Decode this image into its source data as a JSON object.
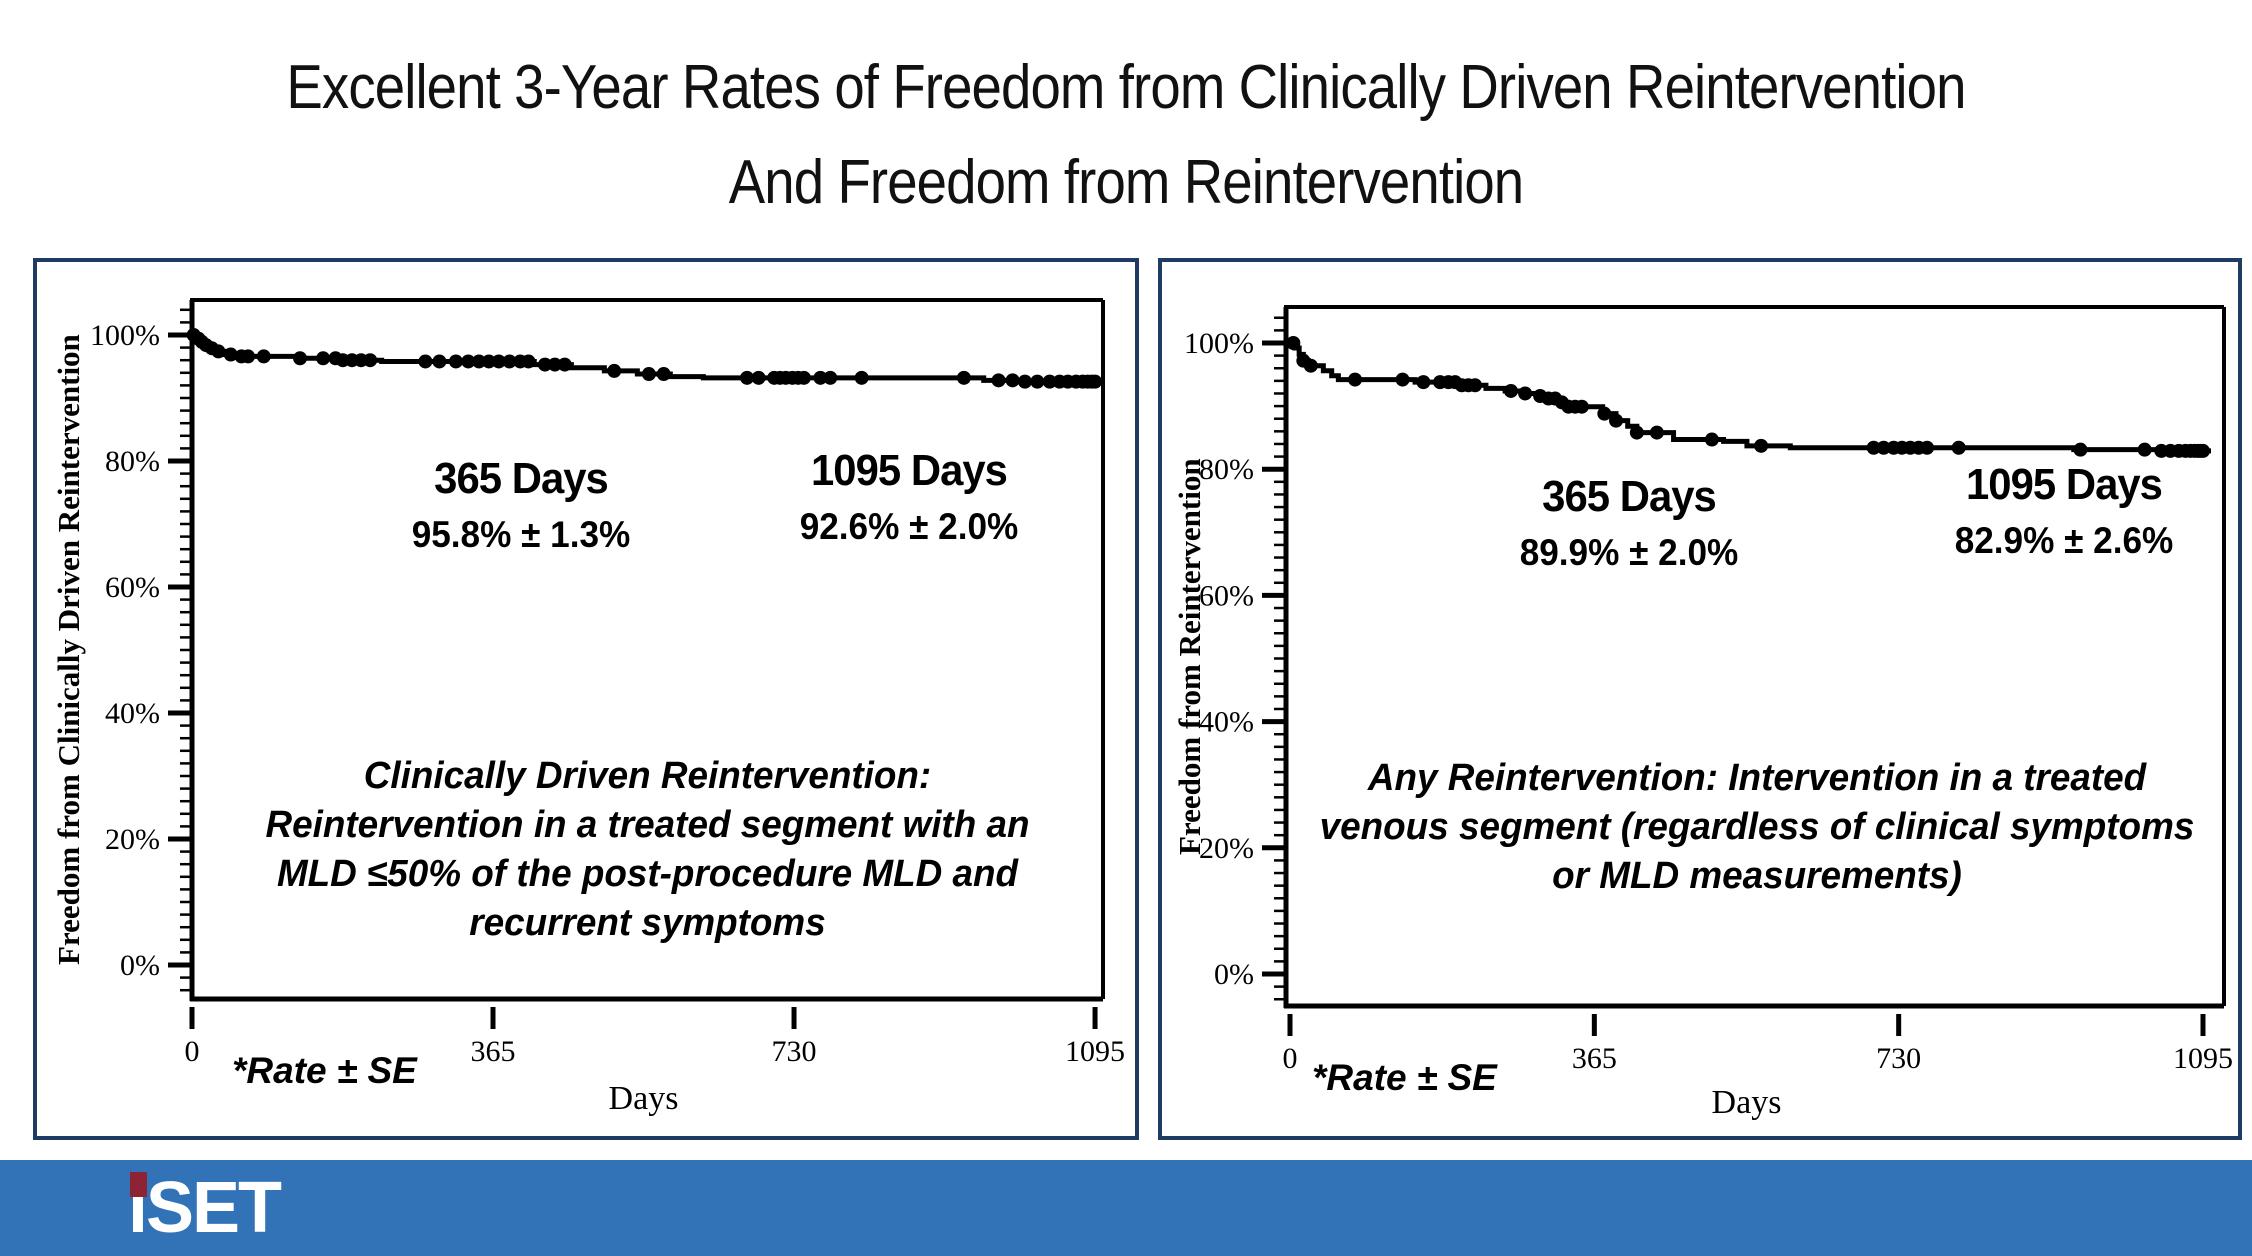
{
  "title": {
    "line1": "Excellent 3-Year Rates of Freedom from Clinically Driven Reintervention",
    "line2": "And Freedom from Reintervention"
  },
  "colors": {
    "panel_border": "#1f3a63",
    "curve": "#000000",
    "footer_bar": "#3273b8",
    "logo_accent_red": "#8e2433",
    "logo_text_white": "#ffffff"
  },
  "footer": {
    "logo_text": "iSET"
  },
  "chart_data": [
    {
      "type": "line",
      "subtype": "kaplan-meier-step",
      "ylabel": "Freedom from Clinically Driven Reintervention",
      "xlabel": "Days",
      "footnote": "*Rate ± SE",
      "xlim": [
        0,
        1095
      ],
      "ylim": [
        0,
        100
      ],
      "x_ticks": [
        0,
        365,
        730,
        1095
      ],
      "y_ticks": [
        {
          "value": 100,
          "label": "100%"
        },
        {
          "value": 80,
          "label": "80%"
        },
        {
          "value": 60,
          "label": "60%"
        },
        {
          "value": 40,
          "label": "40%"
        },
        {
          "value": 20,
          "label": "20%"
        },
        {
          "value": 0,
          "label": "0%"
        }
      ],
      "annotations": [
        {
          "heading": "365 Days",
          "value": "95.8% ± 1.3%"
        },
        {
          "heading": "1095 Days",
          "value": "92.6% ± 2.0%"
        }
      ],
      "note_lines": [
        "Clinically Driven Reintervention:",
        "Reintervention in a treated segment with an",
        "MLD ≤50% of the post-procedure MLD and",
        "recurrent symptoms"
      ],
      "steps": [
        [
          0,
          100
        ],
        [
          5,
          99.4
        ],
        [
          9,
          98.9
        ],
        [
          14,
          98.4
        ],
        [
          20,
          97.9
        ],
        [
          28,
          97.4
        ],
        [
          40,
          96.9
        ],
        [
          55,
          96.6
        ],
        [
          130,
          96.3
        ],
        [
          175,
          96.0
        ],
        [
          230,
          95.8
        ],
        [
          415,
          95.3
        ],
        [
          460,
          94.8
        ],
        [
          500,
          94.3
        ],
        [
          540,
          93.8
        ],
        [
          580,
          93.4
        ],
        [
          620,
          93.2
        ],
        [
          960,
          92.8
        ],
        [
          1010,
          92.6
        ]
      ],
      "censor_days": [
        2,
        8,
        12,
        17,
        24,
        32,
        47,
        60,
        68,
        87,
        131,
        159,
        174,
        183,
        194,
        205,
        216,
        283,
        300,
        320,
        335,
        348,
        360,
        372,
        385,
        398,
        408,
        428,
        440,
        452,
        512,
        554,
        572,
        673,
        687,
        706,
        713,
        720,
        728,
        735,
        742,
        762,
        774,
        812,
        936,
        978,
        995,
        1010,
        1025,
        1040,
        1052,
        1062,
        1072,
        1080,
        1086,
        1091,
        1095
      ]
    },
    {
      "type": "line",
      "subtype": "kaplan-meier-step",
      "ylabel": "Freedom from Reintervention",
      "xlabel": "Days",
      "footnote": "*Rate ± SE",
      "xlim": [
        0,
        1095
      ],
      "ylim": [
        0,
        100
      ],
      "x_ticks": [
        0,
        365,
        730,
        1095
      ],
      "y_ticks": [
        {
          "value": 100,
          "label": "100%"
        },
        {
          "value": 80,
          "label": "80%"
        },
        {
          "value": 60,
          "label": "60%"
        },
        {
          "value": 40,
          "label": "40%"
        },
        {
          "value": 20,
          "label": "20%"
        },
        {
          "value": 0,
          "label": "0%"
        }
      ],
      "annotations": [
        {
          "heading": "365 Days",
          "value": "89.9% ± 2.0%"
        },
        {
          "heading": "1095 Days",
          "value": "82.9% ± 2.6%"
        }
      ],
      "note_lines": [
        "Any Reintervention: Intervention in a treated",
        "venous segment (regardless of clinical symptoms",
        "or MLD measurements)"
      ],
      "steps": [
        [
          0,
          100
        ],
        [
          6,
          99.2
        ],
        [
          11,
          98.2
        ],
        [
          16,
          97.2
        ],
        [
          22,
          96.4
        ],
        [
          40,
          95.6
        ],
        [
          50,
          94.8
        ],
        [
          58,
          94.2
        ],
        [
          150,
          93.8
        ],
        [
          205,
          93.3
        ],
        [
          235,
          92.8
        ],
        [
          258,
          92.4
        ],
        [
          278,
          92.0
        ],
        [
          296,
          91.6
        ],
        [
          310,
          91.2
        ],
        [
          322,
          90.6
        ],
        [
          333,
          89.9
        ],
        [
          375,
          88.8
        ],
        [
          391,
          87.7
        ],
        [
          405,
          86.8
        ],
        [
          416,
          85.8
        ],
        [
          460,
          84.7
        ],
        [
          520,
          84.4
        ],
        [
          548,
          83.7
        ],
        [
          600,
          83.4
        ],
        [
          940,
          83.1
        ],
        [
          1040,
          82.9
        ]
      ],
      "censor_days": [
        4,
        16,
        25,
        78,
        135,
        160,
        180,
        190,
        198,
        206,
        214,
        222,
        265,
        282,
        300,
        310,
        318,
        326,
        334,
        342,
        350,
        377,
        391,
        416,
        440,
        506,
        565,
        700,
        712,
        724,
        734,
        744,
        754,
        764,
        802,
        948,
        1025,
        1045,
        1056,
        1066,
        1074,
        1080,
        1085,
        1089,
        1092,
        1095
      ]
    }
  ]
}
